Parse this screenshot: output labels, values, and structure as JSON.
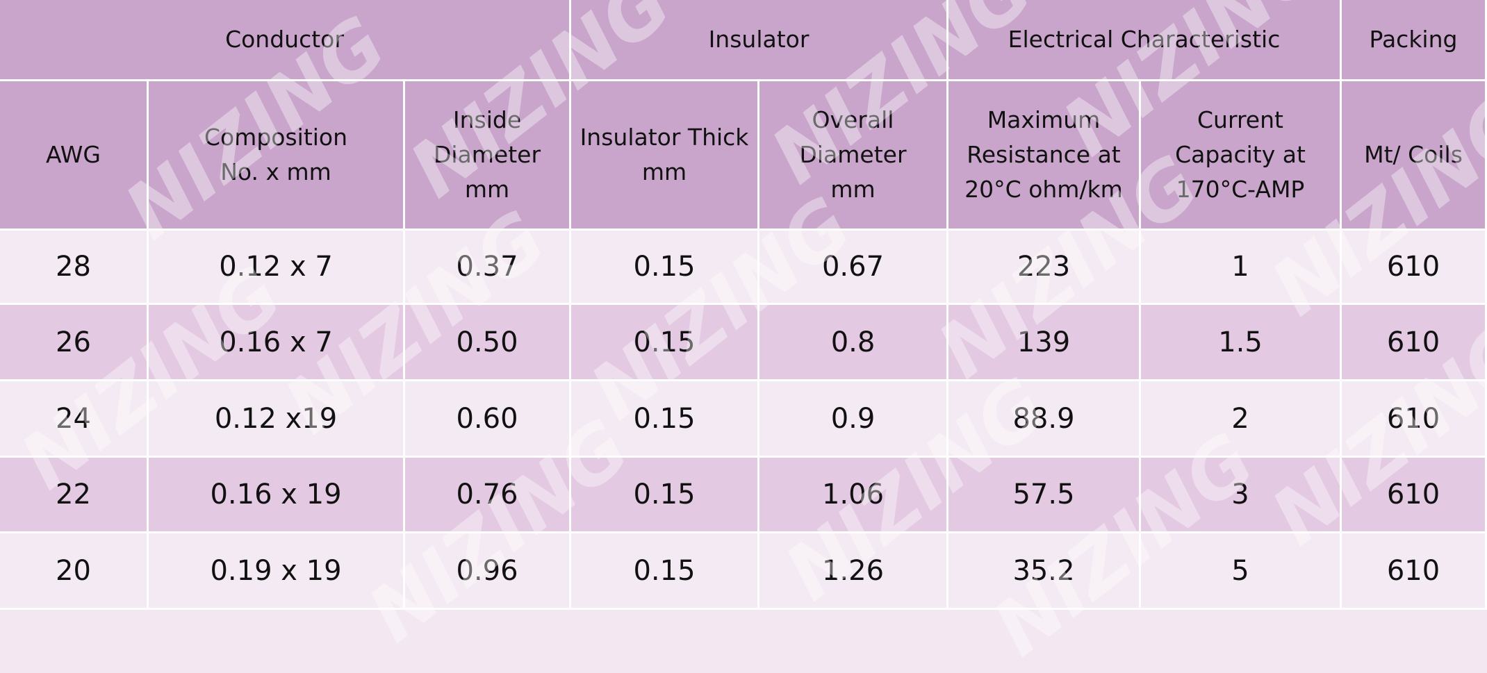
{
  "watermark": "NIZING",
  "table": {
    "groups": [
      {
        "label": "Conductor",
        "span": 3
      },
      {
        "label": "Insulator",
        "span": 2
      },
      {
        "label": "Electrical Characteristic",
        "span": 2
      },
      {
        "label": "Packing",
        "span": 1
      }
    ],
    "columns": [
      "AWG",
      "Composition\nNo. x mm",
      "Inside\nDiameter\nmm",
      "Insulator Thick\nmm",
      "Overall\nDiameter\nmm",
      "Maximum\nResistance at\n20°C ohm/km",
      "Current\nCapacity at\n170°C-AMP",
      "Mt/ Coils"
    ],
    "rows": [
      [
        "28",
        "0.12 x 7",
        "0.37",
        "0.15",
        "0.67",
        "223",
        "1",
        "610"
      ],
      [
        "26",
        "0.16 x 7",
        "0.50",
        "0.15",
        "0.8",
        "139",
        "1.5",
        "610"
      ],
      [
        "24",
        "0.12 x19",
        "0.60",
        "0.15",
        "0.9",
        "88.9",
        "2",
        "610"
      ],
      [
        "22",
        "0.16 x 19",
        "0.76",
        "0.15",
        "1.06",
        "57.5",
        "3",
        "610"
      ],
      [
        "20",
        "0.19 x 19",
        "0.96",
        "0.15",
        "1.26",
        "35.2",
        "5",
        "610"
      ]
    ]
  }
}
